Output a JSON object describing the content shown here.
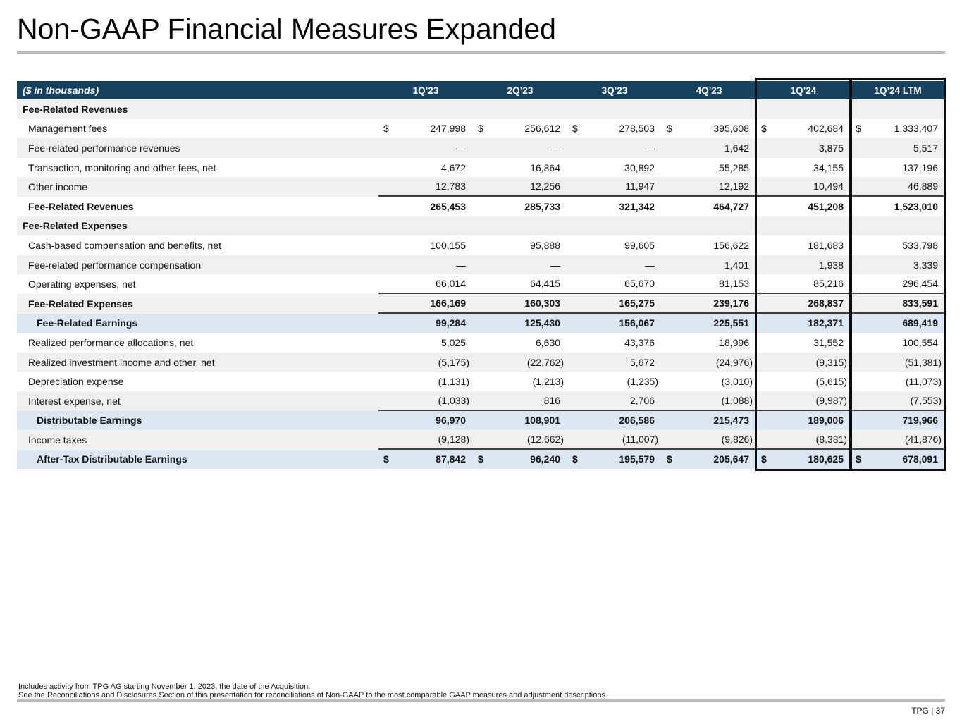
{
  "slide": {
    "title": "Non-GAAP Financial Measures Expanded",
    "footnote_line1": "Includes activity from TPG AG starting November 1, 2023, the date of the Acquisition.",
    "footnote_line2": "See the Reconciliations and Disclosures Section of this presentation for reconciliations of Non-GAAP to the most comparable GAAP measures and adjustment descriptions.",
    "page_label": "TPG | 37"
  },
  "colors": {
    "header_navy": "#17425f",
    "stripe_gray": "#f0f0f0",
    "highlight_blue": "#dbe8f4",
    "rule_gray": "#b9b9b9",
    "box_border_black": "#0d0d0d"
  },
  "table": {
    "unit_label": "($ in thousands)",
    "columns": [
      "1Q’23",
      "2Q’23",
      "3Q’23",
      "4Q’23",
      "1Q’24",
      "1Q’24 LTM"
    ],
    "boxed_columns": [
      "1Q’24",
      "1Q’24 LTM"
    ],
    "rows": [
      {
        "label": "Fee-Related Revenues",
        "style": "section",
        "bg": "stripe",
        "dollar": false,
        "underline": false,
        "values": []
      },
      {
        "label": "Management fees",
        "style": "item",
        "bg": "white",
        "dollar": true,
        "underline": false,
        "values": [
          "247,998",
          "256,612",
          "278,503",
          "395,608",
          "402,684",
          "1,333,407"
        ]
      },
      {
        "label": "Fee-related performance revenues",
        "style": "item",
        "bg": "stripe",
        "dollar": false,
        "underline": false,
        "values": [
          "—",
          "—",
          "—",
          "1,642",
          "3,875",
          "5,517"
        ]
      },
      {
        "label": "Transaction, monitoring and other fees, net",
        "style": "item",
        "bg": "white",
        "dollar": false,
        "underline": false,
        "values": [
          "4,672",
          "16,864",
          "30,892",
          "55,285",
          "34,155",
          "137,196"
        ]
      },
      {
        "label": "Other income",
        "style": "item",
        "bg": "stripe",
        "dollar": false,
        "underline": true,
        "values": [
          "12,783",
          "12,256",
          "11,947",
          "12,192",
          "10,494",
          "46,889"
        ]
      },
      {
        "label": "Fee-Related Revenues",
        "style": "total",
        "bg": "white",
        "dollar": false,
        "underline": false,
        "values": [
          "265,453",
          "285,733",
          "321,342",
          "464,727",
          "451,208",
          "1,523,010"
        ]
      },
      {
        "label": "Fee-Related Expenses",
        "style": "section",
        "bg": "stripe",
        "dollar": false,
        "underline": false,
        "values": []
      },
      {
        "label": "Cash-based compensation and benefits, net",
        "style": "item",
        "bg": "white",
        "dollar": false,
        "underline": false,
        "values": [
          "100,155",
          "95,888",
          "99,605",
          "156,622",
          "181,683",
          "533,798"
        ]
      },
      {
        "label": "Fee-related performance compensation",
        "style": "item",
        "bg": "stripe",
        "dollar": false,
        "underline": false,
        "values": [
          "—",
          "—",
          "—",
          "1,401",
          "1,938",
          "3,339"
        ]
      },
      {
        "label": "Operating expenses, net",
        "style": "item",
        "bg": "white",
        "dollar": false,
        "underline": true,
        "values": [
          "66,014",
          "64,415",
          "65,670",
          "81,153",
          "85,216",
          "296,454"
        ]
      },
      {
        "label": "Fee-Related Expenses",
        "style": "total",
        "bg": "stripe",
        "dollar": false,
        "underline": true,
        "values": [
          "166,169",
          "160,303",
          "165,275",
          "239,176",
          "268,837",
          "833,591"
        ]
      },
      {
        "label": "Fee-Related Earnings",
        "style": "highlight",
        "bg": "blue",
        "dollar": false,
        "underline": false,
        "values": [
          "99,284",
          "125,430",
          "156,067",
          "225,551",
          "182,371",
          "689,419"
        ]
      },
      {
        "label": "Realized performance allocations, net",
        "style": "item",
        "bg": "white",
        "dollar": false,
        "underline": false,
        "values": [
          "5,025",
          "6,630",
          "43,376",
          "18,996",
          "31,552",
          "100,554"
        ]
      },
      {
        "label": "Realized investment income and other, net",
        "style": "item",
        "bg": "stripe",
        "dollar": false,
        "underline": false,
        "values": [
          "(5,175)",
          "(22,762)",
          "5,672",
          "(24,976)",
          "(9,315)",
          "(51,381)"
        ]
      },
      {
        "label": "Depreciation expense",
        "style": "item",
        "bg": "white",
        "dollar": false,
        "underline": false,
        "values": [
          "(1,131)",
          "(1,213)",
          "(1,235)",
          "(3,010)",
          "(5,615)",
          "(11,073)"
        ]
      },
      {
        "label": "Interest expense, net",
        "style": "item",
        "bg": "stripe",
        "dollar": false,
        "underline": true,
        "values": [
          "(1,033)",
          "816",
          "2,706",
          "(1,088)",
          "(9,987)",
          "(7,553)"
        ]
      },
      {
        "label": "Distributable Earnings",
        "style": "highlight",
        "bg": "blue",
        "dollar": false,
        "underline": false,
        "values": [
          "96,970",
          "108,901",
          "206,586",
          "215,473",
          "189,006",
          "719,966"
        ]
      },
      {
        "label": "Income taxes",
        "style": "item",
        "bg": "stripe",
        "dollar": false,
        "underline": true,
        "values": [
          "(9,128)",
          "(12,662)",
          "(11,007)",
          "(9,826)",
          "(8,381)",
          "(41,876)"
        ]
      },
      {
        "label": "After-Tax Distributable Earnings",
        "style": "highlight",
        "bg": "blue",
        "dollar": true,
        "underline": false,
        "values": [
          "87,842",
          "96,240",
          "195,579",
          "205,647",
          "180,625",
          "678,091"
        ]
      }
    ]
  }
}
